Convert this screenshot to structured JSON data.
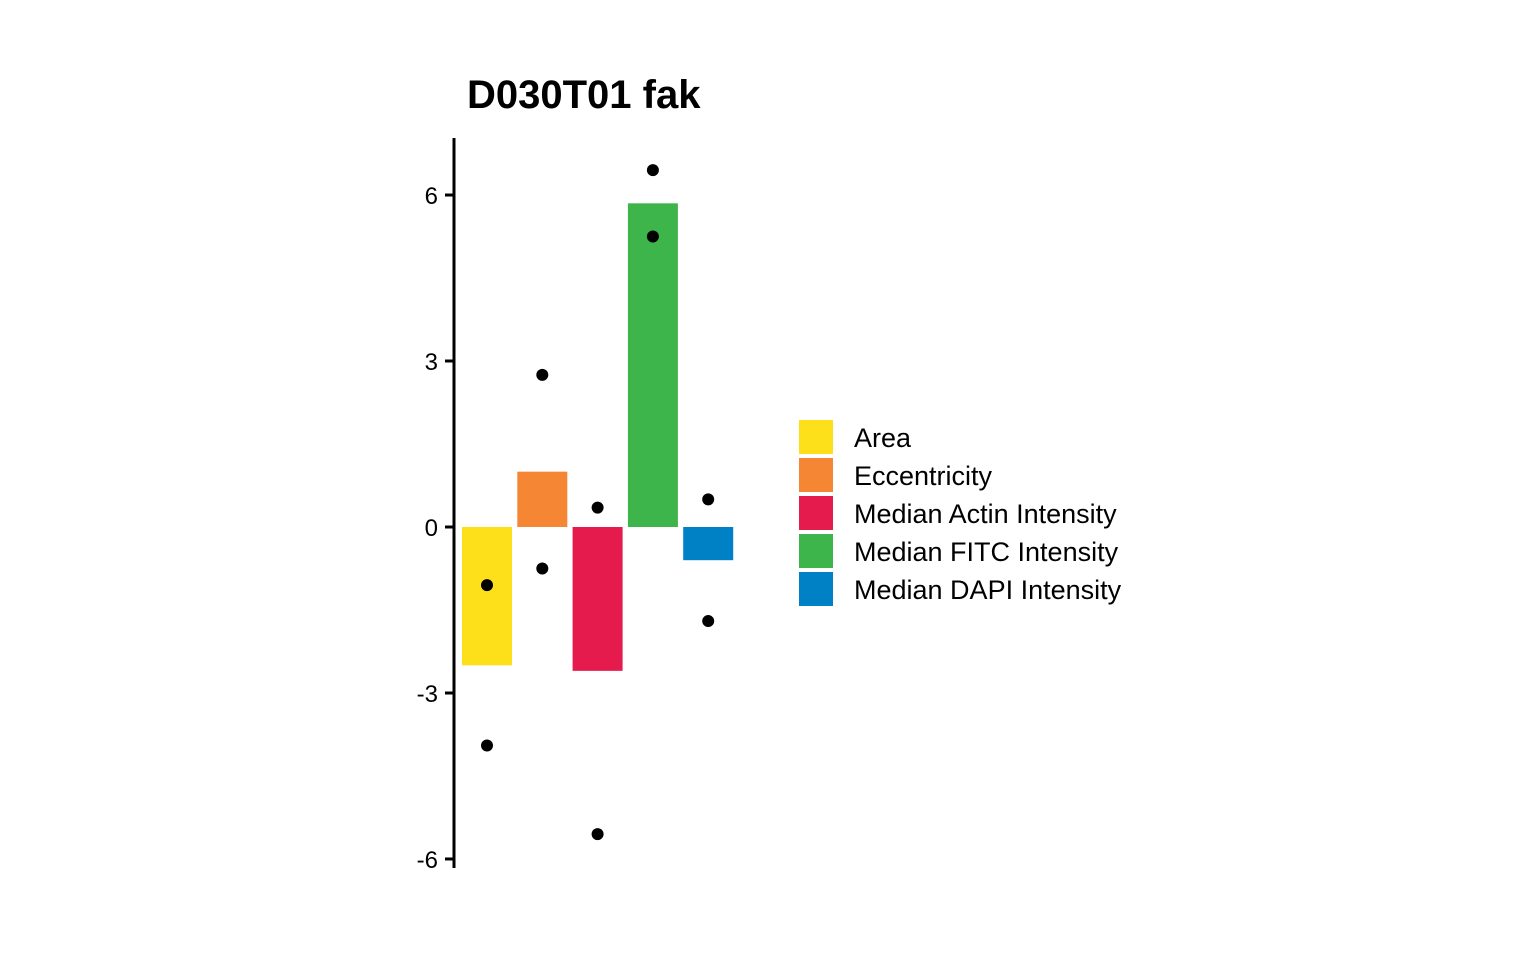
{
  "chart_data": {
    "type": "bar",
    "title": "D030T01 fak",
    "xlabel": "",
    "ylabel": "",
    "ylim": [
      -6.05,
      7.1
    ],
    "yticks": [
      6,
      3,
      0,
      -3,
      -6
    ],
    "ytick_labels": [
      "6",
      "3",
      "0",
      "-3",
      "-6"
    ],
    "grid": false,
    "legend_position": "right",
    "categories": [
      "Area",
      "Eccentricity",
      "Median Actin Intensity",
      "Median FITC Intensity",
      "Median DAPI Intensity"
    ],
    "colors": [
      "#FDE01A",
      "#F58634",
      "#E41B4C",
      "#3DB54A",
      "#0081C6"
    ],
    "values": [
      -2.5,
      1.0,
      -2.6,
      5.85,
      -0.6
    ],
    "points": [
      [
        -1.05,
        -3.95
      ],
      [
        2.75,
        -0.75
      ],
      [
        0.35,
        -5.55
      ],
      [
        6.45,
        5.25
      ],
      [
        0.5,
        -1.7
      ]
    ]
  }
}
